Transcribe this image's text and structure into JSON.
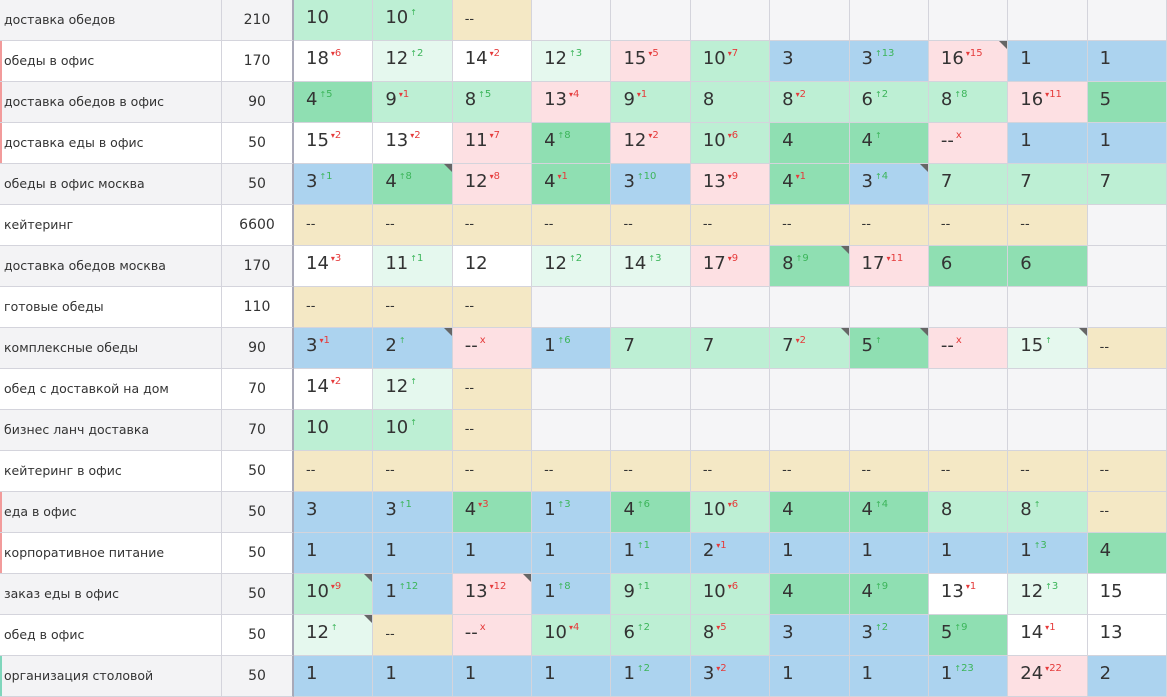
{
  "rows": [
    {
      "keyword": "доставка обедов",
      "freq": 210,
      "cells": [
        {
          "p": "10",
          "bg": "lightgreen"
        },
        {
          "p": "10",
          "t": "up",
          "bg": "lightgreen"
        },
        {
          "p": "--",
          "bg": "sand"
        }
      ]
    },
    {
      "keyword": "обеды в офис",
      "freq": 170,
      "mark": "red",
      "cells": [
        {
          "p": "18",
          "d": "6",
          "t": "down",
          "bg": "white"
        },
        {
          "p": "12",
          "d": "2",
          "t": "up",
          "bg": "pale"
        },
        {
          "p": "14",
          "d": "2",
          "t": "down",
          "bg": "white"
        },
        {
          "p": "12",
          "d": "3",
          "t": "up",
          "bg": "pale"
        },
        {
          "p": "15",
          "d": "5",
          "t": "down",
          "bg": "pink"
        },
        {
          "p": "10",
          "d": "7",
          "t": "down",
          "bg": "lightgreen"
        },
        {
          "p": "3",
          "bg": "blue"
        },
        {
          "p": "3",
          "d": "13",
          "t": "up",
          "bg": "blue"
        },
        {
          "p": "16",
          "d": "15",
          "t": "down",
          "bg": "pink",
          "flag": true
        },
        {
          "p": "1",
          "bg": "blue"
        },
        {
          "p": "1",
          "bg": "blue"
        }
      ]
    },
    {
      "keyword": "доставка обедов в офис",
      "freq": 90,
      "mark": "red",
      "cells": [
        {
          "p": "4",
          "d": "5",
          "t": "up",
          "bg": "green"
        },
        {
          "p": "9",
          "d": "1",
          "t": "down",
          "bg": "lightgreen"
        },
        {
          "p": "8",
          "d": "5",
          "t": "up",
          "bg": "lightgreen"
        },
        {
          "p": "13",
          "d": "4",
          "t": "down",
          "bg": "pink"
        },
        {
          "p": "9",
          "d": "1",
          "t": "down",
          "bg": "lightgreen"
        },
        {
          "p": "8",
          "bg": "lightgreen"
        },
        {
          "p": "8",
          "d": "2",
          "t": "down",
          "bg": "lightgreen"
        },
        {
          "p": "6",
          "d": "2",
          "t": "up",
          "bg": "lightgreen"
        },
        {
          "p": "8",
          "d": "8",
          "t": "up",
          "bg": "lightgreen"
        },
        {
          "p": "16",
          "d": "11",
          "t": "down",
          "bg": "pink"
        },
        {
          "p": "5",
          "bg": "green"
        }
      ]
    },
    {
      "keyword": "доставка еды в офис",
      "freq": 50,
      "mark": "red",
      "cells": [
        {
          "p": "15",
          "d": "2",
          "t": "down",
          "bg": "white"
        },
        {
          "p": "13",
          "d": "2",
          "t": "down",
          "bg": "white"
        },
        {
          "p": "11",
          "d": "7",
          "t": "down",
          "bg": "pink"
        },
        {
          "p": "4",
          "d": "8",
          "t": "up",
          "bg": "green"
        },
        {
          "p": "12",
          "d": "2",
          "t": "down",
          "bg": "pink"
        },
        {
          "p": "10",
          "d": "6",
          "t": "down",
          "bg": "lightgreen"
        },
        {
          "p": "4",
          "bg": "green"
        },
        {
          "p": "4",
          "t": "up",
          "bg": "green"
        },
        {
          "p": "--",
          "d": "x",
          "t": "out",
          "bg": "pink"
        },
        {
          "p": "1",
          "bg": "blue"
        },
        {
          "p": "1",
          "bg": "blue"
        }
      ]
    },
    {
      "keyword": "обеды в офис москва",
      "freq": 50,
      "cells": [
        {
          "p": "3",
          "d": "1",
          "t": "up",
          "bg": "blue"
        },
        {
          "p": "4",
          "d": "8",
          "t": "up",
          "bg": "green",
          "flag": true
        },
        {
          "p": "12",
          "d": "8",
          "t": "down",
          "bg": "pink"
        },
        {
          "p": "4",
          "d": "1",
          "t": "down",
          "bg": "green"
        },
        {
          "p": "3",
          "d": "10",
          "t": "up",
          "bg": "blue"
        },
        {
          "p": "13",
          "d": "9",
          "t": "down",
          "bg": "pink"
        },
        {
          "p": "4",
          "d": "1",
          "t": "down",
          "bg": "green"
        },
        {
          "p": "3",
          "d": "4",
          "t": "up",
          "bg": "blue",
          "flag": true
        },
        {
          "p": "7",
          "bg": "lightgreen"
        },
        {
          "p": "7",
          "bg": "lightgreen"
        },
        {
          "p": "7",
          "bg": "lightgreen"
        }
      ]
    },
    {
      "keyword": "кейтеринг",
      "freq": 6600,
      "cells": [
        {
          "p": "--",
          "bg": "sand"
        },
        {
          "p": "--",
          "bg": "sand"
        },
        {
          "p": "--",
          "bg": "sand"
        },
        {
          "p": "--",
          "bg": "sand"
        },
        {
          "p": "--",
          "bg": "sand"
        },
        {
          "p": "--",
          "bg": "sand"
        },
        {
          "p": "--",
          "bg": "sand"
        },
        {
          "p": "--",
          "bg": "sand"
        },
        {
          "p": "--",
          "bg": "sand"
        },
        {
          "p": "--",
          "bg": "sand"
        }
      ]
    },
    {
      "keyword": "доставка обедов москва",
      "freq": 170,
      "cells": [
        {
          "p": "14",
          "d": "3",
          "t": "down",
          "bg": "white"
        },
        {
          "p": "11",
          "d": "1",
          "t": "up",
          "bg": "pale"
        },
        {
          "p": "12",
          "bg": "white"
        },
        {
          "p": "12",
          "d": "2",
          "t": "up",
          "bg": "pale"
        },
        {
          "p": "14",
          "d": "3",
          "t": "up",
          "bg": "pale"
        },
        {
          "p": "17",
          "d": "9",
          "t": "down",
          "bg": "pink"
        },
        {
          "p": "8",
          "d": "9",
          "t": "up",
          "bg": "green",
          "flag": true
        },
        {
          "p": "17",
          "d": "11",
          "t": "down",
          "bg": "pink"
        },
        {
          "p": "6",
          "bg": "green"
        },
        {
          "p": "6",
          "bg": "green"
        }
      ]
    },
    {
      "keyword": "готовые обеды",
      "freq": 110,
      "cells": [
        {
          "p": "--",
          "bg": "sand"
        },
        {
          "p": "--",
          "bg": "sand"
        },
        {
          "p": "--",
          "bg": "sand"
        }
      ]
    },
    {
      "keyword": "комплексные обеды",
      "freq": 90,
      "cells": [
        {
          "p": "3",
          "d": "1",
          "t": "down",
          "bg": "blue"
        },
        {
          "p": "2",
          "t": "up",
          "bg": "blue",
          "flag": true
        },
        {
          "p": "--",
          "d": "x",
          "t": "out",
          "bg": "pink"
        },
        {
          "p": "1",
          "d": "6",
          "t": "up",
          "bg": "blue"
        },
        {
          "p": "7",
          "bg": "lightgreen"
        },
        {
          "p": "7",
          "bg": "lightgreen"
        },
        {
          "p": "7",
          "d": "2",
          "t": "down",
          "bg": "lightgreen",
          "flag": true
        },
        {
          "p": "5",
          "t": "up",
          "bg": "green",
          "flag": true
        },
        {
          "p": "--",
          "d": "x",
          "t": "out",
          "bg": "pink"
        },
        {
          "p": "15",
          "t": "up",
          "bg": "pale",
          "flag": true
        },
        {
          "p": "--",
          "bg": "sand"
        }
      ]
    },
    {
      "keyword": "обед с доставкой на дом",
      "freq": 70,
      "cells": [
        {
          "p": "14",
          "d": "2",
          "t": "down",
          "bg": "white"
        },
        {
          "p": "12",
          "t": "up",
          "bg": "pale"
        },
        {
          "p": "--",
          "bg": "sand"
        }
      ]
    },
    {
      "keyword": "бизнес ланч доставка",
      "freq": 70,
      "cells": [
        {
          "p": "10",
          "bg": "lightgreen"
        },
        {
          "p": "10",
          "t": "up",
          "bg": "lightgreen"
        },
        {
          "p": "--",
          "bg": "sand"
        }
      ]
    },
    {
      "keyword": "кейтеринг в офис",
      "freq": 50,
      "cells": [
        {
          "p": "--",
          "bg": "sand"
        },
        {
          "p": "--",
          "bg": "sand"
        },
        {
          "p": "--",
          "bg": "sand"
        },
        {
          "p": "--",
          "bg": "sand"
        },
        {
          "p": "--",
          "bg": "sand"
        },
        {
          "p": "--",
          "bg": "sand"
        },
        {
          "p": "--",
          "bg": "sand"
        },
        {
          "p": "--",
          "bg": "sand"
        },
        {
          "p": "--",
          "bg": "sand"
        },
        {
          "p": "--",
          "bg": "sand"
        },
        {
          "p": "--",
          "bg": "sand"
        }
      ]
    },
    {
      "keyword": "еда в офис",
      "freq": 50,
      "mark": "red",
      "cells": [
        {
          "p": "3",
          "bg": "blue"
        },
        {
          "p": "3",
          "d": "1",
          "t": "up",
          "bg": "blue"
        },
        {
          "p": "4",
          "d": "3",
          "t": "down",
          "bg": "green"
        },
        {
          "p": "1",
          "d": "3",
          "t": "up",
          "bg": "blue"
        },
        {
          "p": "4",
          "d": "6",
          "t": "up",
          "bg": "green"
        },
        {
          "p": "10",
          "d": "6",
          "t": "down",
          "bg": "lightgreen"
        },
        {
          "p": "4",
          "bg": "green"
        },
        {
          "p": "4",
          "d": "4",
          "t": "up",
          "bg": "green"
        },
        {
          "p": "8",
          "bg": "lightgreen"
        },
        {
          "p": "8",
          "t": "up",
          "bg": "lightgreen"
        },
        {
          "p": "--",
          "bg": "sand"
        }
      ]
    },
    {
      "keyword": "корпоративное питание",
      "freq": 50,
      "mark": "red",
      "cells": [
        {
          "p": "1",
          "bg": "blue"
        },
        {
          "p": "1",
          "bg": "blue"
        },
        {
          "p": "1",
          "bg": "blue"
        },
        {
          "p": "1",
          "bg": "blue"
        },
        {
          "p": "1",
          "d": "1",
          "t": "up",
          "bg": "blue"
        },
        {
          "p": "2",
          "d": "1",
          "t": "down",
          "bg": "blue"
        },
        {
          "p": "1",
          "bg": "blue"
        },
        {
          "p": "1",
          "bg": "blue"
        },
        {
          "p": "1",
          "bg": "blue"
        },
        {
          "p": "1",
          "d": "3",
          "t": "up",
          "bg": "blue"
        },
        {
          "p": "4",
          "bg": "green"
        }
      ]
    },
    {
      "keyword": "заказ еды в офис",
      "freq": 50,
      "cells": [
        {
          "p": "10",
          "d": "9",
          "t": "down",
          "bg": "lightgreen",
          "flag": true
        },
        {
          "p": "1",
          "d": "12",
          "t": "up",
          "bg": "blue"
        },
        {
          "p": "13",
          "d": "12",
          "t": "down",
          "bg": "pink",
          "flag": true
        },
        {
          "p": "1",
          "d": "8",
          "t": "up",
          "bg": "blue"
        },
        {
          "p": "9",
          "d": "1",
          "t": "up",
          "bg": "lightgreen"
        },
        {
          "p": "10",
          "d": "6",
          "t": "down",
          "bg": "lightgreen"
        },
        {
          "p": "4",
          "bg": "green"
        },
        {
          "p": "4",
          "d": "9",
          "t": "up",
          "bg": "green"
        },
        {
          "p": "13",
          "d": "1",
          "t": "down",
          "bg": "white"
        },
        {
          "p": "12",
          "d": "3",
          "t": "up",
          "bg": "pale"
        },
        {
          "p": "15",
          "bg": "white"
        }
      ]
    },
    {
      "keyword": "обед в офис",
      "freq": 50,
      "cells": [
        {
          "p": "12",
          "t": "up",
          "bg": "pale",
          "flag": true
        },
        {
          "p": "--",
          "bg": "sand"
        },
        {
          "p": "--",
          "d": "x",
          "t": "out",
          "bg": "pink"
        },
        {
          "p": "10",
          "d": "4",
          "t": "down",
          "bg": "lightgreen"
        },
        {
          "p": "6",
          "d": "2",
          "t": "up",
          "bg": "lightgreen"
        },
        {
          "p": "8",
          "d": "5",
          "t": "down",
          "bg": "lightgreen"
        },
        {
          "p": "3",
          "bg": "blue"
        },
        {
          "p": "3",
          "d": "2",
          "t": "up",
          "bg": "blue"
        },
        {
          "p": "5",
          "d": "9",
          "t": "up",
          "bg": "green"
        },
        {
          "p": "14",
          "d": "1",
          "t": "down",
          "bg": "white"
        },
        {
          "p": "13",
          "bg": "white"
        }
      ]
    },
    {
      "keyword": "организация столовой",
      "freq": 50,
      "mark": "teal",
      "cells": [
        {
          "p": "1",
          "bg": "blue"
        },
        {
          "p": "1",
          "bg": "blue"
        },
        {
          "p": "1",
          "bg": "blue"
        },
        {
          "p": "1",
          "bg": "blue"
        },
        {
          "p": "1",
          "d": "2",
          "t": "up",
          "bg": "blue"
        },
        {
          "p": "3",
          "d": "2",
          "t": "down",
          "bg": "blue"
        },
        {
          "p": "1",
          "bg": "blue"
        },
        {
          "p": "1",
          "bg": "blue"
        },
        {
          "p": "1",
          "d": "23",
          "t": "up",
          "bg": "blue"
        },
        {
          "p": "24",
          "d": "22",
          "t": "down",
          "bg": "pink"
        },
        {
          "p": "2",
          "bg": "blue"
        }
      ]
    }
  ]
}
